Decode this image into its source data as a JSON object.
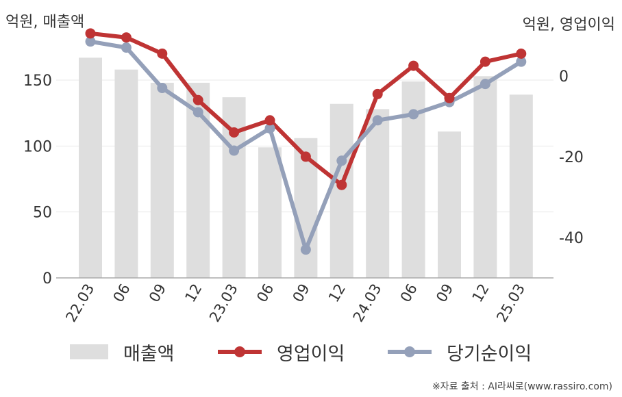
{
  "chart_data": {
    "type": "bar+line",
    "categories": [
      "22.03",
      "06",
      "09",
      "12",
      "23.03",
      "06",
      "09",
      "12",
      "24.03",
      "06",
      "09",
      "12",
      "25.03"
    ],
    "left_axis": {
      "label": "억원, 매출액",
      "ylim": [
        0,
        190
      ],
      "ticks": [
        0,
        50,
        100,
        150
      ]
    },
    "right_axis": {
      "label": "억원, 영업이익",
      "ylim": [
        -50,
        12
      ],
      "ticks": [
        0,
        -20,
        -40
      ]
    },
    "series": [
      {
        "name": "매출액",
        "kind": "bar",
        "axis": "left",
        "color": "#dedede",
        "values": [
          167,
          158,
          148,
          148,
          137,
          99,
          106,
          132,
          128,
          149,
          111,
          153,
          139
        ]
      },
      {
        "name": "영업이익",
        "kind": "line",
        "axis": "right",
        "color": "#bf3434",
        "values": [
          10.5,
          9.5,
          5.5,
          -6,
          -14,
          -11,
          -20,
          -27,
          -4.5,
          2.5,
          -5.5,
          3.5,
          5.5
        ]
      },
      {
        "name": "당기순이익",
        "kind": "line",
        "axis": "right",
        "color": "#94a0b9",
        "values": [
          8.5,
          7,
          -3,
          -9,
          -18.5,
          -13,
          -43,
          -21,
          -11,
          -9.5,
          -6.5,
          -2,
          3.5
        ]
      }
    ],
    "grid": true,
    "legend_position": "bottom"
  },
  "source": "※자료 출처 : AI라씨로(www.rassiro.com)"
}
